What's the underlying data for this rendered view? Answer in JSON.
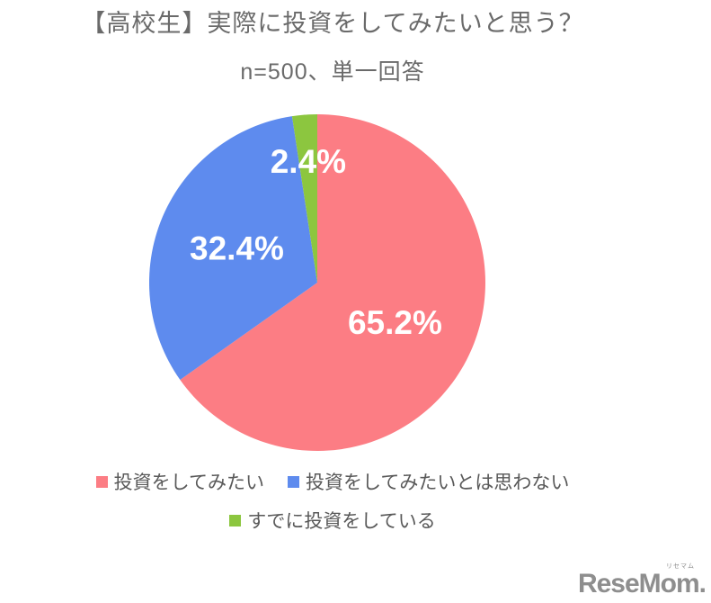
{
  "header": {
    "title": "【高校生】実際に投資をしてみたいと思う？",
    "subtitle": "n=500、単一回答"
  },
  "chart_data": {
    "type": "pie",
    "title": "【高校生】実際に投資をしてみたいと思う？",
    "subtitle": "n=500、単一回答",
    "sample_size": 500,
    "answer_type": "単一回答",
    "start_angle_deg": 0,
    "direction": "clockwise",
    "legend_position": "bottom",
    "value_label_color": "#ffffff",
    "slices": [
      {
        "label": "投資をしてみたい",
        "value": 65.2,
        "display": "65.2%",
        "color": "#FC7D84"
      },
      {
        "label": "投資をしてみたいとは思わない",
        "value": 32.4,
        "display": "32.4%",
        "color": "#5E8BEE"
      },
      {
        "label": "すでに投資をしている",
        "value": 2.4,
        "display": "2.4%",
        "color": "#8CC63F"
      }
    ]
  },
  "watermark": {
    "text": "ReseMom.",
    "kana": "リセマム"
  },
  "colors": {
    "background": "#ffffff",
    "title_text": "#6a6a6a",
    "legend_text": "#595959",
    "watermark_text": "#8e8e8e"
  }
}
